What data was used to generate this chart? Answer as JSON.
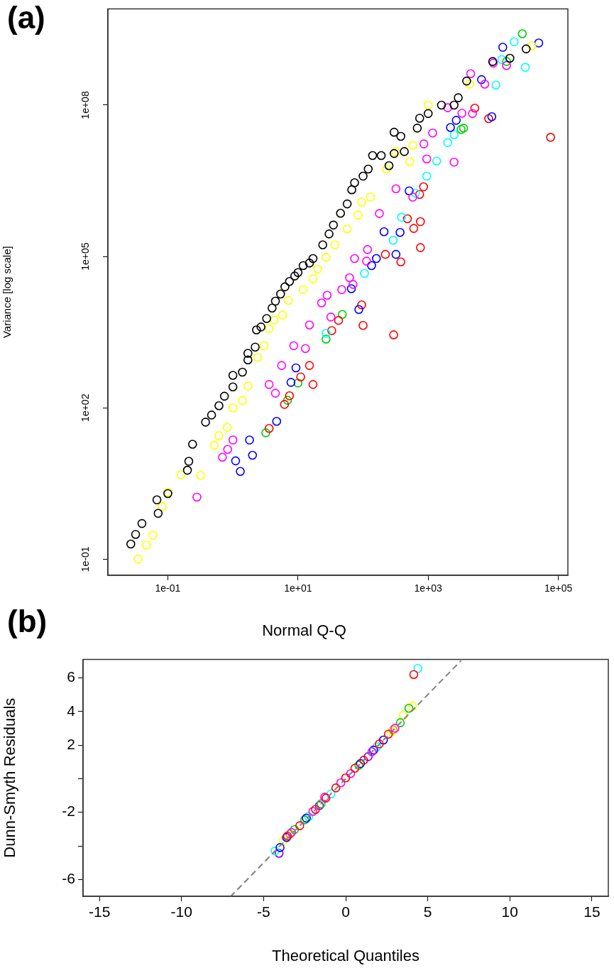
{
  "chart_data": [
    {
      "type": "scatter",
      "ylabel": "Variance [log scale]",
      "annotations": [
        "(a)"
      ],
      "log": "xy",
      "grid": false,
      "legend": false,
      "marker": "circle",
      "xlim": [
        0.012,
        140000
      ],
      "ylim": [
        0.048,
        8100000000
      ],
      "xticks": [
        {
          "value": 0.1,
          "label": "1e-01"
        },
        {
          "value": 10,
          "label": "1e+01"
        },
        {
          "value": 1000,
          "label": "1e+03"
        },
        {
          "value": 100000,
          "label": "1e+05"
        }
      ],
      "yticks": [
        {
          "value": 0.1,
          "label": "1e-01"
        },
        {
          "value": 100,
          "label": "1e+02"
        },
        {
          "value": 100000,
          "label": "1e+05"
        },
        {
          "value": 100000000,
          "label": "1e+08"
        }
      ],
      "series": [
        {
          "color": "#000000",
          "x": [
            0.027,
            0.032,
            0.04,
            0.068,
            0.071,
            0.1,
            0.2,
            0.21,
            0.24,
            0.38,
            0.47,
            0.61,
            0.74,
            1.0,
            1.0,
            1.4,
            1.7,
            1.7,
            2.2,
            2.3,
            2.7,
            3.3,
            4.0,
            4.5,
            5.4,
            6.3,
            7.4,
            8.9,
            10,
            12,
            15,
            17,
            24,
            30,
            35,
            45,
            57,
            67,
            74,
            100,
            120,
            140,
            190,
            250,
            300,
            300,
            380,
            430,
            680,
            740,
            1000,
            1600,
            2500,
            2900,
            3900,
            9800,
            18000,
            32000
          ],
          "values": [
            0.2,
            0.31,
            0.51,
            1.5,
            0.81,
            2.0,
            5.8,
            8.7,
            19,
            52,
            72,
            110,
            170,
            260,
            440,
            510,
            890,
            1200,
            1600,
            3500,
            4000,
            5900,
            9500,
            13000,
            18000,
            25000,
            32000,
            41000,
            48000,
            66000,
            74000,
            91000,
            170000,
            280000,
            420000,
            720000,
            1100000,
            2100000,
            2900000,
            3900000,
            5400000,
            10000000,
            10000000,
            6300000,
            11000000,
            29000000,
            24000000,
            12000000,
            35000000,
            55000000,
            68000000,
            100000000,
            100000000,
            140000000,
            300000000,
            730000000,
            850000000,
            1300000000
          ]
        },
        {
          "color": "#ffff00",
          "x": [
            0.035,
            0.047,
            0.059,
            0.082,
            0.1,
            0.16,
            0.32,
            0.52,
            0.61,
            0.82,
            1.0,
            1.4,
            1.7,
            2.4,
            3.0,
            3.6,
            4.3,
            5.8,
            7.1,
            12,
            17,
            20,
            27,
            37,
            57,
            84,
            95,
            130,
            230,
            320,
            520,
            580,
            1000,
            4300,
            39000
          ],
          "values": [
            0.1,
            0.19,
            0.3,
            1.1,
            2.1,
            4.7,
            4.6,
            18,
            28,
            41,
            100,
            140,
            270,
            1000,
            1700,
            3700,
            5500,
            6900,
            13500,
            22000,
            36000,
            56000,
            96000,
            170000,
            350000,
            660000,
            1200000,
            1500000,
            5400000,
            12000000,
            7600000,
            16000000,
            100000000,
            260000000,
            1500000000
          ]
        },
        {
          "color": "#ff00ff",
          "x": [
            0.28,
            0.69,
            0.83,
            1.0,
            3.6,
            4.5,
            5.6,
            8.6,
            13,
            15,
            23,
            28,
            32,
            47,
            62,
            70,
            74,
            113,
            117,
            178,
            320,
            580,
            860,
            950,
            1170,
            2000,
            2500,
            3300,
            4500,
            4800,
            7400,
            10000,
            16000
          ],
          "values": [
            1.7,
            10.5,
            15,
            23,
            290,
            195,
            690,
            1700,
            1500,
            4400,
            12000,
            17000,
            6300,
            22000,
            38000,
            28000,
            91000,
            81000,
            137000,
            710000,
            2200000,
            1500000,
            17000000,
            8600000,
            28000000,
            89000000,
            7400000,
            69000000,
            420000000,
            68000000,
            260000000,
            680000000,
            610000000
          ]
        },
        {
          "color": "#0000ff",
          "x": [
            1.1,
            1.3,
            1.8,
            2.0,
            4.7,
            7.8,
            9.3,
            66,
            86,
            135,
            160,
            210,
            320,
            370,
            510,
            2200,
            2700,
            6600,
            9500,
            14000,
            50000
          ],
          "values": [
            8.9,
            5.5,
            23,
            11.5,
            54,
            320,
            620,
            23000,
            8900,
            66000,
            91000,
            310000,
            110000,
            300000,
            2000000,
            36000000,
            50000000,
            320000000,
            59000000,
            1400000000,
            1700000000
          ]
        },
        {
          "color": "#00ffff",
          "x": [
            27,
            105,
            290,
            390,
            640,
            950,
            1350,
            2000,
            2500,
            11000,
            13500,
            21000,
            31000
          ],
          "values": [
            3000,
            46000,
            210000,
            600000,
            1800000,
            3900000,
            7800000,
            18000000,
            26000000,
            250000000,
            800000000,
            1800000000,
            560000000
          ]
        },
        {
          "color": "#ff0000",
          "x": [
            3.6,
            6.2,
            7.4,
            11,
            15,
            17,
            33,
            42,
            95,
            100,
            220,
            295,
            380,
            480,
            600,
            740,
            760,
            760,
            850,
            5200,
            8500,
            76000
          ],
          "values": [
            39,
            117,
            173,
            410,
            690,
            290,
            3400,
            5400,
            11000,
            4300,
            110000,
            2800,
            78000,
            560000,
            360000,
            1700000,
            150000,
            490000,
            2400000,
            87000000,
            54000000,
            23000000
          ]
        },
        {
          "color": "#00cc00",
          "x": [
            3.2,
            6.9,
            10,
            27,
            48,
            3200,
            3500,
            16000,
            28000
          ],
          "values": [
            32,
            141,
            310,
            2300,
            7100,
            33000000,
            35000000,
            730000000,
            2600000000
          ]
        }
      ]
    },
    {
      "type": "scatter",
      "title": "Normal Q-Q",
      "xlabel": "Theoretical Quantiles",
      "ylabel": "Dunn-Smyth Residuals",
      "annotations": [
        "(b)"
      ],
      "grid": false,
      "legend": false,
      "marker": "circle",
      "xlim": [
        -16,
        16
      ],
      "ylim": [
        -7,
        7.1
      ],
      "xticks": [
        -15,
        -10,
        -5,
        0,
        5,
        10,
        15
      ],
      "yticks": [
        -6,
        {
          "value": -4,
          "label": null
        },
        -2,
        {
          "value": 0,
          "label": null
        },
        2,
        4,
        6
      ],
      "series": [
        {
          "type": "line",
          "color": "#808080",
          "line_style": "dashed",
          "marker": "none",
          "x": [
            -7,
            7
          ],
          "values": [
            -7,
            7
          ]
        },
        {
          "color": "#ff0000",
          "x": [
            -3.55,
            -2.8,
            -1.84,
            -1.2,
            -0.6,
            0,
            0.56,
            1.1,
            2.05,
            2.6,
            4.15
          ],
          "values": [
            -3.42,
            -2.8,
            -1.83,
            -1.15,
            -0.55,
            0.05,
            0.62,
            1.1,
            2.07,
            2.65,
            6.2
          ]
        },
        {
          "color": "#ff00ff",
          "x": [
            -3.3,
            -2.0,
            -1.28,
            -0.3,
            0.3,
            1.6,
            3.0
          ],
          "values": [
            -3.2,
            -1.95,
            -1.1,
            -0.25,
            0.3,
            1.6,
            3.0
          ]
        },
        {
          "color": "#0000ff",
          "x": [
            -4.0,
            -3.6,
            -2.4,
            0.9,
            1.7,
            2.3
          ],
          "values": [
            -4.1,
            -3.5,
            -2.35,
            0.9,
            1.7,
            2.3
          ]
        },
        {
          "color": "#00cc00",
          "x": [
            -3.12,
            -2.5,
            -1.5,
            0.8,
            3.33,
            3.85
          ],
          "values": [
            -3.03,
            -2.45,
            -1.5,
            0.8,
            3.33,
            4.19
          ]
        },
        {
          "color": "#00ffff",
          "x": [
            -4.3,
            -2.26,
            -0.9,
            1.9,
            4.4
          ],
          "values": [
            -4.3,
            -2.26,
            -0.9,
            1.9,
            6.56
          ]
        },
        {
          "color": "#ffff00",
          "x": [
            -3.8,
            2.8,
            3.5,
            4.06
          ],
          "values": [
            -3.7,
            2.8,
            3.76,
            4.32
          ]
        },
        {
          "color": "#ff8000",
          "x": [
            -3.4,
            2.9
          ],
          "values": [
            -3.3,
            2.9
          ]
        },
        {
          "color": "#8000ff",
          "x": [
            -4.06,
            -1.6,
            1.37
          ],
          "values": [
            -4.44,
            -1.6,
            1.31
          ]
        }
      ]
    }
  ]
}
